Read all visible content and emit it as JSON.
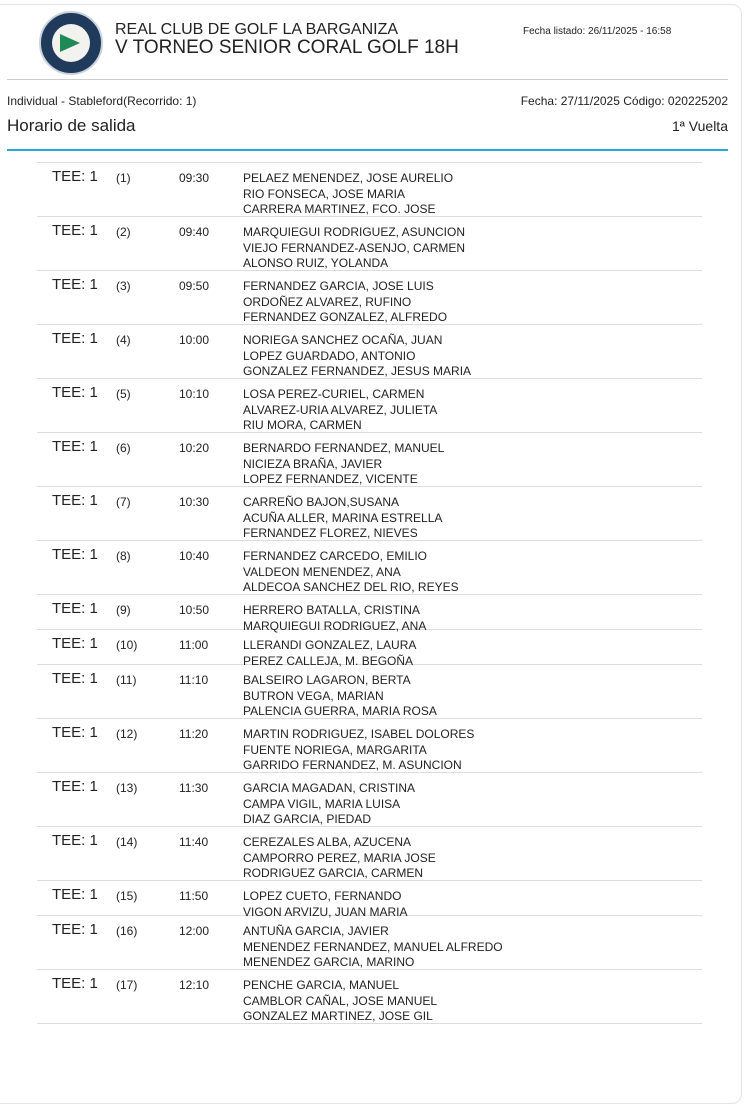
{
  "header": {
    "club": "REAL CLUB DE GOLF LA BARGANIZA",
    "tournament": "V TORNEO SENIOR CORAL GOLF 18H",
    "listed": "Fecha listado: 26/11/2025 - 16:58",
    "logo_text": "REAL CLUB DE GOLF LA BARGANIZA 1982"
  },
  "info": {
    "modality": "Individual - Stableford(Recorrido: 1)",
    "date_code": "Fecha: 27/11/2025 Código: 020225202",
    "title": "Horario de salida",
    "round": "1ª Vuelta"
  },
  "groups": [
    {
      "tee": "TEE: 1",
      "num": "(1)",
      "time": "09:30",
      "players": [
        "PELAEZ MENENDEZ, JOSE AURELIO",
        "RIO FONSECA, JOSE MARIA",
        "CARRERA MARTINEZ, FCO. JOSE"
      ]
    },
    {
      "tee": "TEE: 1",
      "num": "(2)",
      "time": "09:40",
      "players": [
        "MARQUIEGUI RODRIGUEZ, ASUNCION",
        "VIEJO FERNANDEZ-ASENJO, CARMEN",
        "ALONSO RUIZ, YOLANDA"
      ]
    },
    {
      "tee": "TEE: 1",
      "num": "(3)",
      "time": "09:50",
      "players": [
        "FERNANDEZ GARCIA, JOSE LUIS",
        "ORDOÑEZ ALVAREZ, RUFINO",
        "FERNANDEZ GONZALEZ, ALFREDO"
      ]
    },
    {
      "tee": "TEE: 1",
      "num": "(4)",
      "time": "10:00",
      "players": [
        "NORIEGA SANCHEZ OCAÑA, JUAN",
        "LOPEZ GUARDADO, ANTONIO",
        "GONZALEZ FERNANDEZ, JESUS MARIA"
      ]
    },
    {
      "tee": "TEE: 1",
      "num": "(5)",
      "time": "10:10",
      "players": [
        "LOSA PEREZ-CURIEL, CARMEN",
        "ALVAREZ-URIA ALVAREZ, JULIETA",
        "RIU MORA, CARMEN"
      ]
    },
    {
      "tee": "TEE: 1",
      "num": "(6)",
      "time": "10:20",
      "players": [
        "BERNARDO FERNANDEZ, MANUEL",
        "NICIEZA BRAÑA, JAVIER",
        "LOPEZ FERNANDEZ, VICENTE"
      ]
    },
    {
      "tee": "TEE: 1",
      "num": "(7)",
      "time": "10:30",
      "players": [
        "CARREÑO BAJON,SUSANA",
        "ACUÑA ALLER, MARINA ESTRELLA",
        "FERNANDEZ FLOREZ, NIEVES"
      ]
    },
    {
      "tee": "TEE: 1",
      "num": "(8)",
      "time": "10:40",
      "players": [
        "FERNANDEZ CARCEDO, EMILIO",
        "VALDEON MENENDEZ, ANA",
        "ALDECOA SANCHEZ DEL RIO, REYES"
      ]
    },
    {
      "tee": "TEE: 1",
      "num": "(9)",
      "time": "10:50",
      "players": [
        "HERRERO BATALLA, CRISTINA",
        "MARQUIEGUI RODRIGUEZ, ANA"
      ]
    },
    {
      "tee": "TEE: 1",
      "num": "(10)",
      "time": "11:00",
      "players": [
        "LLERANDI GONZALEZ, LAURA",
        "PEREZ CALLEJA, M. BEGOÑA"
      ]
    },
    {
      "tee": "TEE: 1",
      "num": "(11)",
      "time": "11:10",
      "players": [
        "BALSEIRO LAGARON, BERTA",
        "BUTRON VEGA, MARIAN",
        "PALENCIA GUERRA, MARIA ROSA"
      ]
    },
    {
      "tee": "TEE: 1",
      "num": "(12)",
      "time": "11:20",
      "players": [
        "MARTIN RODRIGUEZ, ISABEL DOLORES",
        "FUENTE NORIEGA, MARGARITA",
        "GARRIDO FERNANDEZ, M. ASUNCION"
      ]
    },
    {
      "tee": "TEE: 1",
      "num": "(13)",
      "time": "11:30",
      "players": [
        "GARCIA MAGADAN, CRISTINA",
        "CAMPA VIGIL, MARIA LUISA",
        "DIAZ GARCIA, PIEDAD"
      ]
    },
    {
      "tee": "TEE: 1",
      "num": "(14)",
      "time": "11:40",
      "players": [
        "CEREZALES ALBA, AZUCENA",
        "CAMPORRO PEREZ, MARIA JOSE",
        "RODRIGUEZ GARCIA, CARMEN"
      ]
    },
    {
      "tee": "TEE: 1",
      "num": "(15)",
      "time": "11:50",
      "players": [
        "LOPEZ CUETO, FERNANDO",
        "VIGON ARVIZU, JUAN MARIA"
      ]
    },
    {
      "tee": "TEE: 1",
      "num": "(16)",
      "time": "12:00",
      "players": [
        "ANTUÑA GARCIA, JAVIER",
        "MENENDEZ FERNANDEZ, MANUEL ALFREDO",
        "MENENDEZ GARCIA, MARINO"
      ]
    },
    {
      "tee": "TEE: 1",
      "num": "(17)",
      "time": "12:10",
      "players": [
        "PENCHE GARCIA, MANUEL",
        "CAMBLOR CAÑAL, JOSE MANUEL",
        "GONZALEZ MARTINEZ, JOSE GIL"
      ]
    }
  ]
}
